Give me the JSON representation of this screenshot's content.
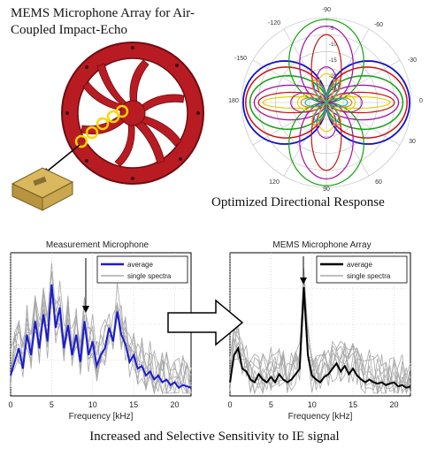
{
  "heading": {
    "line1": "MEMS Microphone Array for Air-",
    "line2": "Coupled Impact-Echo"
  },
  "polar": {
    "caption": "Optimized Directional Response",
    "angle_labels": [
      "-90",
      "-60",
      "-30",
      "0",
      "30",
      "60",
      "90",
      "120",
      "180",
      "-150",
      "-120"
    ],
    "ring_labels": [
      "-5",
      "-10",
      "-15",
      "-20",
      "-25"
    ],
    "colors": [
      "#1010cc",
      "#cc1010",
      "#10a010",
      "#a010a0",
      "#e0d000",
      "#10b0b0",
      "#e08000"
    ]
  },
  "left_chart": {
    "title": "Measurement Microphone",
    "legend": [
      "average",
      "single spectra"
    ],
    "xlabel": "Frequency [kHz]",
    "xticks": [
      "0",
      "5",
      "10",
      "15",
      "20"
    ]
  },
  "right_chart": {
    "title": "MEMS Microphone Array",
    "legend": [
      "average",
      "single spectra"
    ],
    "xlabel": "Frequency [kHz]",
    "xticks": [
      "0",
      "5",
      "10",
      "15",
      "20"
    ]
  },
  "bottom_caption": "Increased and Selective Sensitivity to IE signal",
  "chart_data": [
    {
      "type": "line",
      "title": "Measurement Microphone",
      "xlabel": "Frequency [kHz]",
      "ylabel": "",
      "xlim": [
        0,
        22
      ],
      "series": [
        {
          "name": "average",
          "color": "#1a1ad0",
          "x": [
            0,
            0.5,
            1,
            1.5,
            2,
            2.5,
            3,
            3.5,
            4,
            4.5,
            5,
            5.5,
            6,
            6.5,
            7,
            7.5,
            8,
            8.5,
            9,
            9.5,
            10,
            10.5,
            11,
            11.5,
            12,
            12.5,
            13,
            13.5,
            14,
            14.5,
            15,
            15.5,
            16,
            16.5,
            17,
            17.5,
            18,
            18.5,
            19,
            19.5,
            20,
            20.5,
            21,
            21.5,
            22
          ],
          "y": [
            0.15,
            0.25,
            0.35,
            0.2,
            0.45,
            0.3,
            0.55,
            0.35,
            0.6,
            0.4,
            0.82,
            0.5,
            0.65,
            0.35,
            0.52,
            0.3,
            0.45,
            0.25,
            0.55,
            0.3,
            0.4,
            0.22,
            0.3,
            0.35,
            0.5,
            0.4,
            0.62,
            0.45,
            0.38,
            0.25,
            0.3,
            0.2,
            0.22,
            0.15,
            0.18,
            0.12,
            0.15,
            0.1,
            0.12,
            0.08,
            0.1,
            0.06,
            0.08,
            0.07,
            0.06
          ]
        }
      ],
      "legend": [
        "average",
        "single spectra"
      ]
    },
    {
      "type": "line",
      "title": "MEMS Microphone Array",
      "xlabel": "Frequency [kHz]",
      "ylabel": "",
      "xlim": [
        0,
        22
      ],
      "series": [
        {
          "name": "average",
          "color": "#000000",
          "x": [
            0,
            0.5,
            1,
            1.5,
            2,
            2.5,
            3,
            3.5,
            4,
            4.5,
            5,
            5.5,
            6,
            6.5,
            7,
            7.5,
            8,
            8.5,
            9,
            9.5,
            10,
            10.5,
            11,
            11.5,
            12,
            12.5,
            13,
            13.5,
            14,
            14.5,
            15,
            15.5,
            16,
            16.5,
            17,
            17.5,
            18,
            18.5,
            19,
            19.5,
            20,
            20.5,
            21,
            21.5,
            22
          ],
          "y": [
            0.1,
            0.3,
            0.35,
            0.2,
            0.18,
            0.12,
            0.1,
            0.16,
            0.12,
            0.1,
            0.14,
            0.1,
            0.16,
            0.12,
            0.1,
            0.12,
            0.16,
            0.2,
            0.8,
            0.3,
            0.15,
            0.12,
            0.1,
            0.14,
            0.16,
            0.2,
            0.24,
            0.18,
            0.22,
            0.16,
            0.2,
            0.15,
            0.12,
            0.1,
            0.12,
            0.1,
            0.09,
            0.1,
            0.08,
            0.09,
            0.1,
            0.07,
            0.08,
            0.06,
            0.07
          ]
        }
      ],
      "legend": [
        "average",
        "single spectra"
      ]
    }
  ]
}
